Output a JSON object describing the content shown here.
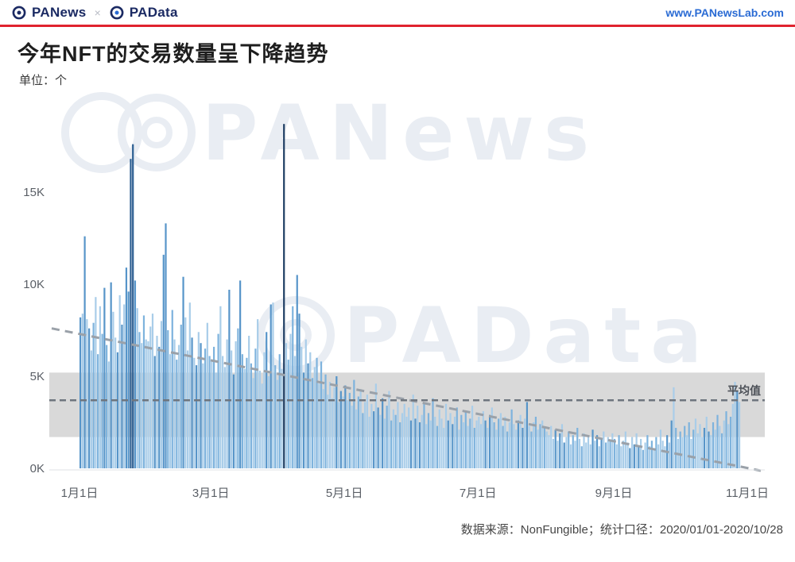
{
  "header": {
    "logo_panews": "PANews",
    "logo_separator": "×",
    "logo_padata": "PAData",
    "site_url": "www.PANewsLab.com"
  },
  "title": "今年NFT的交易数量呈下降趋势",
  "unit_label": "单位：个",
  "watermarks": [
    {
      "text": "PANews"
    },
    {
      "text": "PAData"
    }
  ],
  "footer": {
    "source_note": "数据来源：NonFungible；统计口径：2020/01/01-2020/10/28"
  },
  "colors": {
    "accent_red": "#e0232e",
    "navy": "#1b2a63",
    "url_blue": "#2a6bd4",
    "bar_light": "#a9cde9",
    "bar_medium": "#7eb3dd",
    "bar_dark": "#5795c9",
    "bar_spike": "#2d5f92",
    "bar_spike_max": "#1e3e63",
    "band": "#d9d9d9",
    "trend": "#9aa1a9",
    "average": "#6e757e",
    "watermark": "#e9edf3",
    "axis_text": "#5a5f66"
  },
  "chart_data": {
    "type": "bar",
    "title": "今年NFT的交易数量呈下降趋势",
    "unit": "个",
    "period": "2020/01/01-2020/10/28",
    "source": "NonFungible",
    "x_tick_labels": [
      "1月1日",
      "3月1日",
      "5月1日",
      "7月1日",
      "9月1日",
      "11月1日"
    ],
    "x_tick_day_index": [
      0,
      60,
      121,
      182,
      244,
      305
    ],
    "y_tick_labels": [
      "0K",
      "5K",
      "10K",
      "15K"
    ],
    "y_tick_values": [
      0,
      5,
      10,
      15
    ],
    "ylim": [
      0,
      20
    ],
    "values_unit": "thousands_per_day",
    "values": [
      8.2,
      8.4,
      12.6,
      8.1,
      7.6,
      6.4,
      7.9,
      9.3,
      6.2,
      8.8,
      7.3,
      9.8,
      6.7,
      5.8,
      10.1,
      8.5,
      7.1,
      6.3,
      9.4,
      7.8,
      8.9,
      10.9,
      9.6,
      16.8,
      17.6,
      10.2,
      8.7,
      7.4,
      6.8,
      8.3,
      7.0,
      6.9,
      7.7,
      8.4,
      6.1,
      7.2,
      6.6,
      8.0,
      11.6,
      13.3,
      7.5,
      6.2,
      8.6,
      7.0,
      5.9,
      6.7,
      7.8,
      10.4,
      8.2,
      6.4,
      9.0,
      7.1,
      6.0,
      5.6,
      7.4,
      6.8,
      5.7,
      6.5,
      7.9,
      6.1,
      5.8,
      6.6,
      5.2,
      7.3,
      8.8,
      6.1,
      5.5,
      7.0,
      9.7,
      6.4,
      5.1,
      6.9,
      7.6,
      10.2,
      6.2,
      5.4,
      6.0,
      7.2,
      5.7,
      4.9,
      6.5,
      8.1,
      5.3,
      4.6,
      6.3,
      7.4,
      5.0,
      8.9,
      9.0,
      5.6,
      4.8,
      6.2,
      5.4,
      18.7,
      6.8,
      5.9,
      7.3,
      8.8,
      6.1,
      10.5,
      8.4,
      6.6,
      5.2,
      7.0,
      5.7,
      6.3,
      4.9,
      5.5,
      6.0,
      4.6,
      5.8,
      4.3,
      5.1,
      4.0,
      4.7,
      3.8,
      4.4,
      5.0,
      3.6,
      4.2,
      3.9,
      4.5,
      3.7,
      4.1,
      3.4,
      4.8,
      3.2,
      3.9,
      4.3,
      3.0,
      3.6,
      4.0,
      2.8,
      3.5,
      3.1,
      4.6,
      3.3,
      2.9,
      3.8,
      2.7,
      3.4,
      4.2,
      2.6,
      3.2,
      2.9,
      3.6,
      2.5,
      3.0,
      3.5,
      2.8,
      3.3,
      2.6,
      4.0,
      2.7,
      3.4,
      2.5,
      2.9,
      3.6,
      2.4,
      3.0,
      2.6,
      3.8,
      2.8,
      2.3,
      3.2,
      2.7,
      2.2,
      3.5,
      2.6,
      3.0,
      2.4,
      2.8,
      3.3,
      2.1,
      2.9,
      2.5,
      3.1,
      2.3,
      2.7,
      3.4,
      2.2,
      2.6,
      2.8,
      2.4,
      3.1,
      2.6,
      2.2,
      2.9,
      3.3,
      2.5,
      2.1,
      2.7,
      3.0,
      2.3,
      2.8,
      2.0,
      2.5,
      3.2,
      2.4,
      2.1,
      2.6,
      2.9,
      2.2,
      2.7,
      3.6,
      2.3,
      2.0,
      2.5,
      2.8,
      2.1,
      2.4,
      2.6,
      2.2,
      2.0,
      1.8,
      2.3,
      1.6,
      2.1,
      1.5,
      1.9,
      2.4,
      1.4,
      1.7,
      2.0,
      1.3,
      1.8,
      1.5,
      2.2,
      1.6,
      1.2,
      1.9,
      1.4,
      1.7,
      1.3,
      2.1,
      1.5,
      1.8,
      1.2,
      1.6,
      2.0,
      1.4,
      1.7,
      1.5,
      1.9,
      1.6,
      1.3,
      1.8,
      1.2,
      1.5,
      2.0,
      1.4,
      1.1,
      1.7,
      1.3,
      1.9,
      1.2,
      1.6,
      1.0,
      1.4,
      1.8,
      1.2,
      1.5,
      1.1,
      1.7,
      1.3,
      2.1,
      1.5,
      1.2,
      1.8,
      1.4,
      2.6,
      4.4,
      2.2,
      1.6,
      2.0,
      1.7,
      2.3,
      1.8,
      2.5,
      1.6,
      2.1,
      2.7,
      1.9,
      2.4,
      1.7,
      2.2,
      2.8,
      2.0,
      1.8,
      2.5,
      2.1,
      2.9,
      2.3,
      1.9,
      2.6,
      3.1,
      2.4,
      2.8,
      3.5,
      4.7,
      4.2,
      3.6
    ],
    "average_line": {
      "label": "平均值",
      "value": 3.7
    },
    "band": {
      "low": 1.7,
      "high": 5.2
    },
    "trend_line": {
      "start_value": 7.6,
      "end_value": 0.0
    },
    "legend_position": "none",
    "grid": false
  }
}
